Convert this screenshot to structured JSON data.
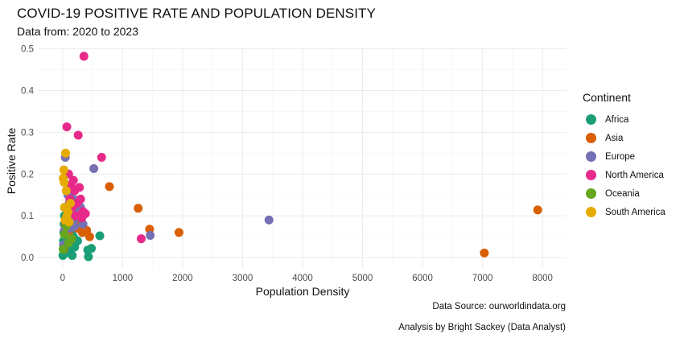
{
  "chart_data": {
    "type": "scatter",
    "title": "COVID-19 POSITIVE RATE AND POPULATION DENSITY",
    "subtitle": "Data from: 2020 to 2023",
    "xlabel": "Population Density",
    "ylabel": "Positive Rate",
    "xlim": [
      -400,
      8400
    ],
    "ylim": [
      -0.025,
      0.505
    ],
    "xticks": [
      0,
      1000,
      2000,
      3000,
      4000,
      5000,
      6000,
      7000,
      8000
    ],
    "yticks": [
      0.0,
      0.1,
      0.2,
      0.3,
      0.4,
      0.5
    ],
    "ytick_labels": [
      "0.0",
      "0.1",
      "0.2",
      "0.3",
      "0.4",
      "0.5"
    ],
    "grid": true,
    "legend_title": "Continent",
    "legend_position": "right",
    "captions": [
      "Data Source: ourworldindata.org",
      "Analysis by Bright Sackey (Data Analyst)"
    ],
    "series": [
      {
        "name": "Africa",
        "color": "#1B9E77",
        "points": [
          [
            5,
            0.005
          ],
          [
            10,
            0.02
          ],
          [
            15,
            0.04
          ],
          [
            20,
            0.06
          ],
          [
            25,
            0.08
          ],
          [
            30,
            0.1
          ],
          [
            35,
            0.01
          ],
          [
            40,
            0.03
          ],
          [
            50,
            0.05
          ],
          [
            60,
            0.07
          ],
          [
            70,
            0.09
          ],
          [
            80,
            0.11
          ],
          [
            90,
            0.02
          ],
          [
            100,
            0.04
          ],
          [
            110,
            0.06
          ],
          [
            120,
            0.015
          ],
          [
            130,
            0.08
          ],
          [
            140,
            0.03
          ],
          [
            150,
            0.12
          ],
          [
            160,
            0.005
          ],
          [
            180,
            0.05
          ],
          [
            200,
            0.025
          ],
          [
            220,
            0.07
          ],
          [
            250,
            0.04
          ],
          [
            300,
            0.09
          ],
          [
            330,
            0.06
          ],
          [
            420,
            0.018
          ],
          [
            430,
            0.002
          ],
          [
            480,
            0.022
          ],
          [
            620,
            0.052
          ]
        ]
      },
      {
        "name": "Asia",
        "color": "#D95F02",
        "points": [
          [
            20,
            0.02
          ],
          [
            50,
            0.08
          ],
          [
            80,
            0.1
          ],
          [
            100,
            0.06
          ],
          [
            150,
            0.09
          ],
          [
            200,
            0.11
          ],
          [
            250,
            0.07
          ],
          [
            280,
            0.085
          ],
          [
            330,
            0.06
          ],
          [
            400,
            0.065
          ],
          [
            450,
            0.05
          ],
          [
            780,
            0.17
          ],
          [
            1260,
            0.118
          ],
          [
            1450,
            0.068
          ],
          [
            1940,
            0.06
          ],
          [
            7030,
            0.011
          ],
          [
            7920,
            0.114
          ]
        ]
      },
      {
        "name": "Europe",
        "color": "#7570B3",
        "points": [
          [
            15,
            0.03
          ],
          [
            30,
            0.065
          ],
          [
            45,
            0.24
          ],
          [
            60,
            0.09
          ],
          [
            75,
            0.12
          ],
          [
            90,
            0.15
          ],
          [
            100,
            0.1
          ],
          [
            110,
            0.13
          ],
          [
            120,
            0.07
          ],
          [
            130,
            0.085
          ],
          [
            140,
            0.16
          ],
          [
            160,
            0.105
          ],
          [
            180,
            0.14
          ],
          [
            200,
            0.075
          ],
          [
            230,
            0.095
          ],
          [
            260,
            0.11
          ],
          [
            300,
            0.12
          ],
          [
            340,
            0.08
          ],
          [
            520,
            0.213
          ],
          [
            1460,
            0.053
          ],
          [
            3440,
            0.09
          ]
        ]
      },
      {
        "name": "North America",
        "color": "#E7298A",
        "points": [
          [
            70,
            0.313
          ],
          [
            100,
            0.2
          ],
          [
            120,
            0.14
          ],
          [
            140,
            0.175
          ],
          [
            160,
            0.12
          ],
          [
            180,
            0.185
          ],
          [
            200,
            0.16
          ],
          [
            220,
            0.1
          ],
          [
            240,
            0.13
          ],
          [
            260,
            0.293
          ],
          [
            280,
            0.168
          ],
          [
            300,
            0.14
          ],
          [
            320,
            0.095
          ],
          [
            340,
            0.11
          ],
          [
            355,
            0.482
          ],
          [
            380,
            0.105
          ],
          [
            650,
            0.24
          ],
          [
            1310,
            0.045
          ]
        ]
      },
      {
        "name": "Oceania",
        "color": "#66A61E",
        "points": [
          [
            10,
            0.02
          ],
          [
            30,
            0.055
          ],
          [
            60,
            0.075
          ],
          [
            100,
            0.035
          ],
          [
            150,
            0.045
          ]
        ]
      },
      {
        "name": "South America",
        "color": "#E6AB02",
        "points": [
          [
            10,
            0.19
          ],
          [
            20,
            0.21
          ],
          [
            25,
            0.18
          ],
          [
            30,
            0.12
          ],
          [
            40,
            0.09
          ],
          [
            50,
            0.25
          ],
          [
            60,
            0.16
          ],
          [
            70,
            0.1
          ],
          [
            90,
            0.11
          ],
          [
            110,
            0.085
          ],
          [
            130,
            0.13
          ]
        ]
      }
    ]
  }
}
